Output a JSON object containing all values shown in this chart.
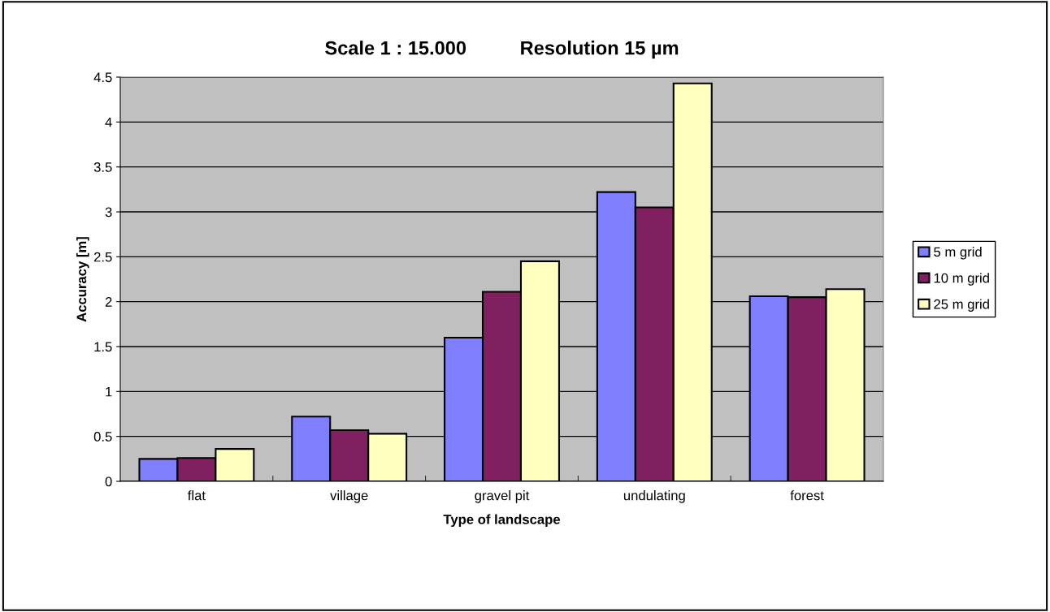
{
  "chart_data": {
    "type": "bar",
    "title": "Scale 1 : 15.000          Resolution 15 µm",
    "xlabel": "Type of landscape",
    "ylabel": "Accuracy [m]",
    "categories": [
      "flat",
      "village",
      "gravel pit",
      "undulating",
      "forest"
    ],
    "series": [
      {
        "name": "5 m grid",
        "color": "#8080ff",
        "values": [
          0.25,
          0.72,
          1.6,
          3.22,
          2.06
        ]
      },
      {
        "name": "10 m grid",
        "color": "#802060",
        "values": [
          0.26,
          0.57,
          2.11,
          3.05,
          2.05
        ]
      },
      {
        "name": "25 m grid",
        "color": "#ffffc0",
        "values": [
          0.36,
          0.53,
          2.45,
          4.43,
          2.14
        ]
      }
    ],
    "ylim": [
      0,
      4.5
    ],
    "yticks": [
      0,
      0.5,
      1,
      1.5,
      2,
      2.5,
      3,
      3.5,
      4,
      4.5
    ],
    "grid": "y",
    "legend": "right"
  }
}
